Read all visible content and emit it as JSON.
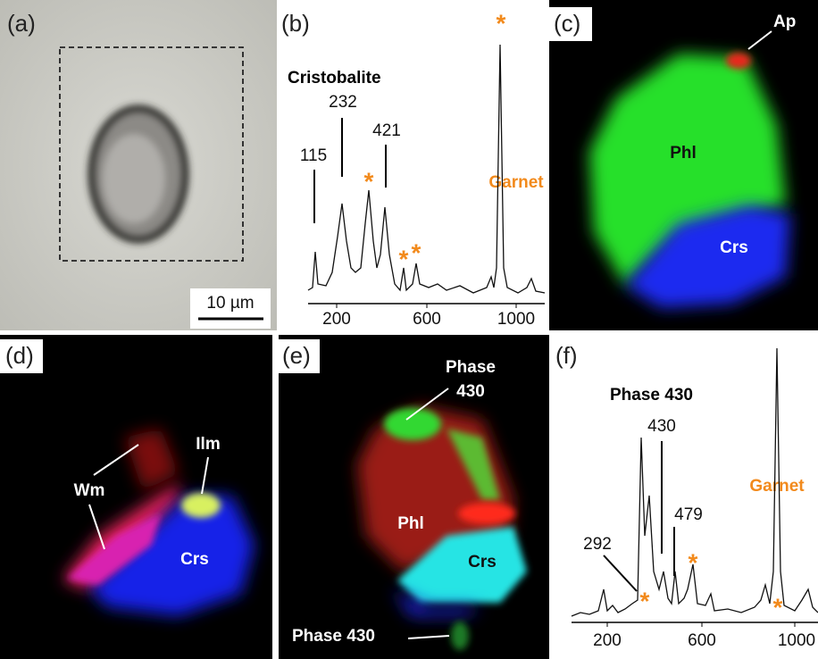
{
  "panels": [
    {
      "label": "(a)",
      "scale_bar": "10 µm"
    },
    {
      "label": "(b)",
      "title": "Cristobalite",
      "peaks": [
        "115",
        "232",
        "421"
      ],
      "phase": "Garnet",
      "markers": [
        "*",
        "*",
        "*",
        "*"
      ],
      "ticks": [
        "200",
        "600",
        "1000"
      ]
    },
    {
      "label": "(c)",
      "labels": [
        "Ap",
        "Phl",
        "Crs"
      ]
    },
    {
      "label": "(d)",
      "labels": [
        "Wm",
        "Ilm",
        "Crs"
      ]
    },
    {
      "label": "(e)",
      "labels": [
        "Phase",
        "430",
        "Phl",
        "Crs",
        "Phase 430"
      ]
    },
    {
      "label": "(f)",
      "title": "Phase 430",
      "peaks": [
        "292",
        "430",
        "479"
      ],
      "phase": "Garnet",
      "markers": [
        "*",
        "*",
        "*"
      ],
      "ticks": [
        "200",
        "600",
        "1000"
      ]
    }
  ]
}
